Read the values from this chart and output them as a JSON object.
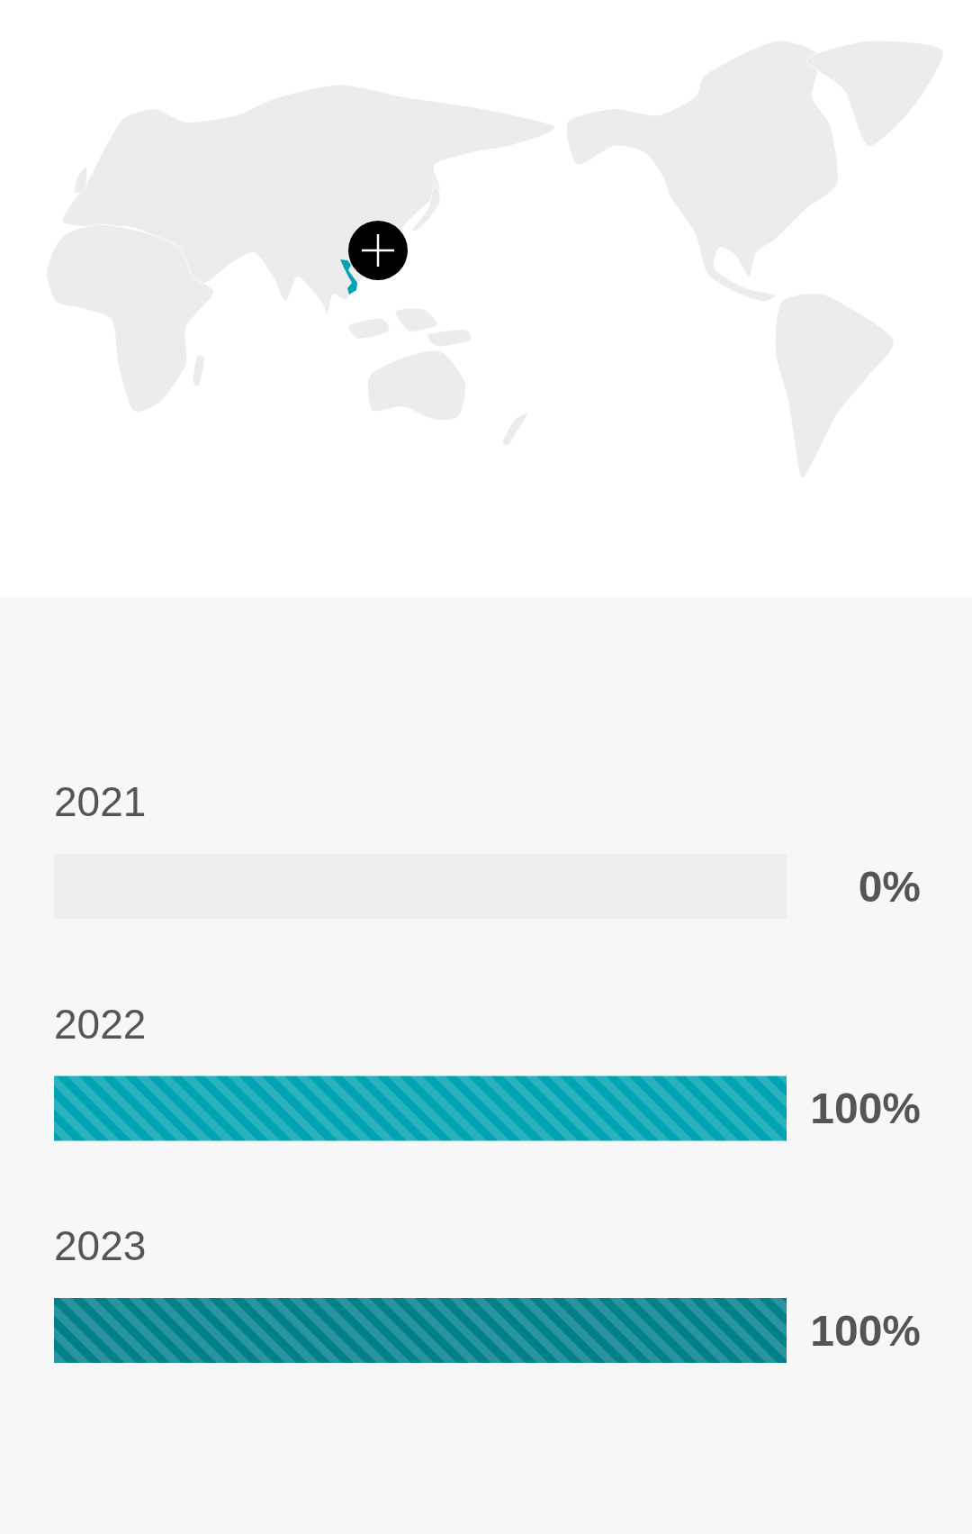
{
  "chart_data": {
    "type": "bar",
    "orientation": "horizontal",
    "stacked": true,
    "categories": [
      "2021",
      "2022",
      "2023"
    ],
    "series": [
      {
        "colors": [
          "#00a3b1",
          "#00a3b1",
          "#00808a"
        ],
        "values": [
          0,
          100,
          100
        ],
        "value_labels": [
          "0%",
          "100%",
          "100%"
        ]
      },
      {
        "color": "#eeeeee",
        "values": [
          100,
          0,
          0
        ]
      }
    ]
  }
}
